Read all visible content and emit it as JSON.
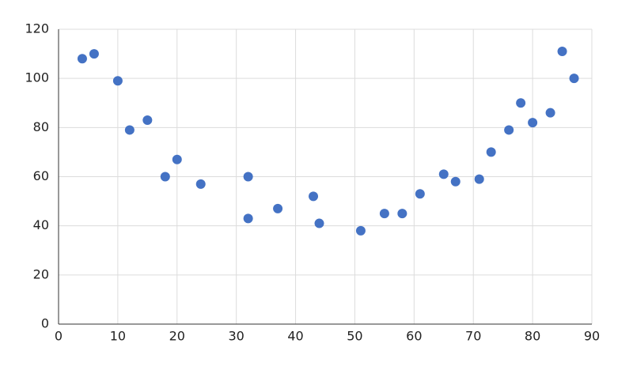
{
  "chart_data": {
    "type": "scatter",
    "series": [
      {
        "color": "#4472c4",
        "x": [
          4,
          6,
          10,
          12,
          15,
          18,
          20,
          24,
          32,
          32,
          37,
          43,
          44,
          51,
          55,
          58,
          61,
          65,
          67,
          71,
          73,
          76,
          78,
          80,
          83,
          85,
          87
        ],
        "values": [
          108,
          110,
          99,
          79,
          83,
          60,
          67,
          57,
          60,
          43,
          47,
          52,
          41,
          38,
          45,
          45,
          53,
          61,
          58,
          59,
          70,
          79,
          90,
          82,
          86,
          111,
          100
        ]
      }
    ],
    "xlim": [
      0,
      90
    ],
    "xticks": [
      0,
      10,
      20,
      30,
      40,
      50,
      60,
      70,
      80,
      90
    ],
    "ylim": [
      0,
      120
    ],
    "yticks": [
      0,
      20,
      40,
      60,
      80,
      100,
      120
    ],
    "grid": true
  }
}
